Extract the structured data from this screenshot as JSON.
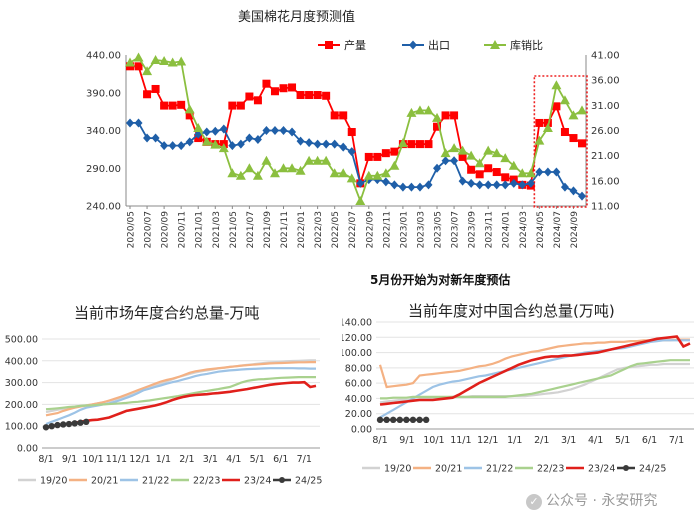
{
  "watermark": "公众号 · 永安研究",
  "watermark_glyph": "✓",
  "chart_data": [
    {
      "type": "line",
      "title": "美国棉花月度预测值",
      "note": "5月份开始为对新年度预估",
      "x": [
        "2020/05",
        "2020/06",
        "2020/07",
        "2020/08",
        "2020/09",
        "2020/10",
        "2020/11",
        "2020/12",
        "2021/01",
        "2021/02",
        "2021/03",
        "2021/04",
        "2021/05",
        "2021/06",
        "2021/07",
        "2021/08",
        "2021/09",
        "2021/10",
        "2021/11",
        "2021/12",
        "2022/01",
        "2022/02",
        "2022/03",
        "2022/04",
        "2022/05",
        "2022/06",
        "2022/07",
        "2022/08",
        "2022/09",
        "2022/10",
        "2022/11",
        "2022/12",
        "2023/01",
        "2023/02",
        "2023/03",
        "2023/04",
        "2023/05",
        "2023/06",
        "2023/07",
        "2023/08",
        "2023/09",
        "2023/10",
        "2023/11",
        "2023/12",
        "2024/01",
        "2024/02",
        "2024/03",
        "2024/04",
        "2024/05",
        "2024/06",
        "2024/07",
        "2024/08",
        "2024/09",
        "2024/10"
      ],
      "x_tick_labels": [
        "2020/05",
        "2020/07",
        "2020/09",
        "2020/11",
        "2021/01",
        "2021/03",
        "2021/05",
        "2021/07",
        "2021/09",
        "2021/11",
        "2022/01",
        "2022/03",
        "2022/05",
        "2022/07",
        "2022/09",
        "2022/11",
        "2023/01",
        "2023/03",
        "2023/05",
        "2023/07",
        "2023/09",
        "2023/11",
        "2024/01",
        "2024/03",
        "2024/05",
        "2024/07",
        "2024/09"
      ],
      "ylim_left": [
        240,
        440
      ],
      "yticks_left": [
        "240.00",
        "290.00",
        "340.00",
        "390.00",
        "440.00"
      ],
      "ylim_right": [
        11,
        41
      ],
      "yticks_right": [
        "11.00",
        "16.00",
        "21.00",
        "26.00",
        "31.00",
        "36.00",
        "41.00"
      ],
      "highlight_range": [
        "2024/05",
        "2024/10"
      ],
      "series": [
        {
          "name": "产量",
          "axis": "left",
          "color": "#ff0000",
          "marker": "square",
          "values": [
            425,
            425,
            388,
            395,
            373,
            373,
            374,
            360,
            330,
            325,
            322,
            322,
            373,
            373,
            385,
            380,
            402,
            392,
            396,
            397,
            387,
            387,
            387,
            386,
            360,
            360,
            338,
            270,
            305,
            305,
            310,
            312,
            322,
            322,
            322,
            322,
            345,
            360,
            360,
            305,
            288,
            282,
            290,
            285,
            278,
            275,
            268,
            267,
            350,
            350,
            372,
            338,
            330,
            323
          ]
        },
        {
          "name": "出口",
          "axis": "left",
          "color": "#1f5fa8",
          "marker": "diamond",
          "values": [
            350,
            350,
            330,
            330,
            320,
            320,
            320,
            325,
            335,
            338,
            339,
            342,
            320,
            322,
            330,
            328,
            340,
            340,
            340,
            338,
            326,
            324,
            322,
            322,
            322,
            318,
            312,
            270,
            275,
            275,
            272,
            268,
            265,
            265,
            265,
            268,
            290,
            300,
            300,
            273,
            270,
            268,
            268,
            268,
            268,
            270,
            268,
            270,
            285,
            285,
            285,
            265,
            260,
            253
          ]
        },
        {
          "name": "库销比",
          "axis": "right",
          "color": "#8bbf3f",
          "marker": "triangle",
          "values": [
            39.5,
            40.5,
            37.8,
            40,
            39.8,
            39.5,
            39.7,
            30.2,
            26.5,
            23.8,
            23.2,
            22.5,
            17.5,
            17,
            18.5,
            17,
            20,
            17.5,
            18.5,
            18.5,
            18,
            20,
            20,
            20,
            17.5,
            17.5,
            16.5,
            12,
            17,
            17,
            17.5,
            19,
            23.5,
            29.5,
            30,
            30,
            28.5,
            21.5,
            22.5,
            22,
            21,
            19.5,
            22,
            21.5,
            20.5,
            19,
            17.5,
            17.5,
            24,
            26.5,
            35,
            32,
            29,
            30
          ]
        }
      ]
    },
    {
      "type": "line",
      "title": "当前市场年度合约总量-万吨",
      "ylim": [
        0,
        500
      ],
      "yticks": [
        "0.00",
        "100.00",
        "200.00",
        "300.00",
        "400.00",
        "500.00"
      ],
      "x_tick_labels": [
        "8/1",
        "9/1",
        "10/1",
        "11/1",
        "12/1",
        "1/1",
        "2/1",
        "3/1",
        "4/1",
        "5/1",
        "6/1",
        "7/1"
      ],
      "n_points": 48,
      "series": [
        {
          "name": "19/20",
          "color": "#d2d2d2",
          "values": [
            165,
            170,
            175,
            180,
            185,
            190,
            192,
            196,
            200,
            205,
            210,
            215,
            222,
            230,
            238,
            245,
            255,
            265,
            275,
            285,
            295,
            305,
            315,
            325,
            332,
            340,
            347,
            352,
            356,
            360,
            365,
            368,
            372,
            375,
            378,
            381,
            384,
            387,
            390,
            392,
            394,
            396,
            398,
            399,
            400,
            401,
            402,
            402
          ]
        },
        {
          "name": "20/21",
          "color": "#f4b183",
          "values": [
            150,
            155,
            160,
            170,
            178,
            185,
            190,
            195,
            200,
            205,
            210,
            218,
            226,
            235,
            245,
            255,
            265,
            275,
            285,
            295,
            305,
            312,
            318,
            325,
            335,
            345,
            352,
            356,
            360,
            363,
            366,
            369,
            372,
            375,
            378,
            380,
            382,
            384,
            386,
            388,
            389,
            390,
            391,
            392,
            393,
            393,
            394,
            394
          ]
        },
        {
          "name": "21/22",
          "color": "#9dc3e6",
          "values": [
            110,
            120,
            130,
            140,
            150,
            162,
            175,
            185,
            190,
            195,
            200,
            205,
            212,
            220,
            230,
            240,
            252,
            265,
            272,
            280,
            287,
            295,
            302,
            308,
            315,
            322,
            330,
            336,
            340,
            345,
            350,
            353,
            356,
            358,
            360,
            362,
            363,
            364,
            365,
            366,
            366,
            366,
            366,
            366,
            365,
            365,
            364,
            364
          ]
        },
        {
          "name": "22/23",
          "color": "#a9d18e",
          "values": [
            178,
            180,
            182,
            185,
            188,
            190,
            193,
            195,
            196,
            198,
            200,
            202,
            203,
            205,
            207,
            210,
            212,
            215,
            218,
            222,
            226,
            230,
            234,
            238,
            243,
            248,
            253,
            258,
            262,
            266,
            270,
            275,
            280,
            290,
            300,
            308,
            312,
            315,
            316,
            318,
            320,
            322,
            323,
            324,
            325,
            325,
            325,
            325
          ]
        },
        {
          "name": "23/24",
          "color": "#e0201b",
          "values": [
            92,
            100,
            105,
            108,
            110,
            115,
            120,
            125,
            128,
            130,
            135,
            140,
            150,
            160,
            170,
            175,
            180,
            185,
            190,
            195,
            202,
            210,
            220,
            228,
            235,
            240,
            243,
            245,
            247,
            250,
            252,
            255,
            258,
            262,
            266,
            270,
            275,
            280,
            285,
            290,
            293,
            296,
            298,
            300,
            300,
            302,
            280,
            285
          ]
        },
        {
          "name": "24/25",
          "color": "#3a3a3a",
          "values": [
            95,
            100,
            105,
            108,
            110,
            113,
            116,
            120
          ]
        }
      ]
    },
    {
      "type": "line",
      "title": "当前年度对中国合约总量(万吨)",
      "ylim": [
        0,
        140
      ],
      "yticks": [
        "0.00",
        "20.00",
        "40.00",
        "60.00",
        "80.00",
        "100.00",
        "120.00",
        "140.00"
      ],
      "x_tick_labels": [
        "8/1",
        "9/1",
        "10/1",
        "11/1",
        "12/1",
        "1/1",
        "2/1",
        "3/1",
        "4/1",
        "5/1",
        "6/1",
        "7/1"
      ],
      "n_points": 48,
      "series": [
        {
          "name": "19/20",
          "color": "#d2d2d2",
          "values": [
            35,
            36,
            37,
            38,
            38,
            38,
            39,
            40,
            40,
            41,
            41,
            42,
            42,
            42,
            43,
            43,
            43,
            43,
            43,
            43,
            43,
            43,
            43,
            44,
            45,
            46,
            47,
            48,
            50,
            52,
            55,
            58,
            62,
            66,
            70,
            74,
            78,
            80,
            81,
            82,
            83,
            84,
            84,
            85,
            85,
            85,
            85,
            85
          ]
        },
        {
          "name": "20/21",
          "color": "#f4b183",
          "values": [
            84,
            55,
            56,
            57,
            58,
            60,
            70,
            71,
            72,
            73,
            74,
            75,
            76,
            78,
            80,
            82,
            83,
            85,
            88,
            92,
            95,
            97,
            99,
            101,
            102,
            104,
            106,
            108,
            109,
            110,
            111,
            112,
            112,
            113,
            113,
            114,
            114,
            114,
            115,
            115,
            116,
            116,
            116,
            116,
            116,
            117,
            117,
            117
          ]
        },
        {
          "name": "21/22",
          "color": "#9dc3e6",
          "values": [
            15,
            20,
            25,
            30,
            35,
            40,
            45,
            50,
            55,
            58,
            60,
            62,
            63,
            65,
            67,
            69,
            70,
            72,
            74,
            76,
            78,
            80,
            82,
            84,
            86,
            88,
            90,
            92,
            94,
            96,
            98,
            100,
            101,
            102,
            103,
            104,
            105,
            106,
            108,
            110,
            112,
            114,
            115,
            116,
            116,
            116,
            116,
            116
          ]
        },
        {
          "name": "22/23",
          "color": "#a9d18e",
          "values": [
            40,
            40,
            41,
            41,
            41,
            42,
            42,
            42,
            42,
            42,
            42,
            42,
            42,
            42,
            42,
            42,
            42,
            42,
            42,
            42,
            43,
            44,
            45,
            46,
            48,
            50,
            52,
            54,
            56,
            58,
            60,
            62,
            64,
            66,
            68,
            70,
            74,
            78,
            82,
            85,
            86,
            87,
            88,
            89,
            90,
            90,
            90,
            90
          ]
        },
        {
          "name": "23/24",
          "color": "#e0201b",
          "values": [
            32,
            33,
            34,
            35,
            36,
            37,
            38,
            38,
            38,
            39,
            40,
            41,
            45,
            50,
            55,
            60,
            64,
            68,
            72,
            76,
            80,
            84,
            87,
            90,
            92,
            94,
            95,
            95,
            96,
            96,
            97,
            98,
            99,
            100,
            102,
            104,
            106,
            108,
            110,
            112,
            114,
            116,
            118,
            119,
            120,
            121,
            108,
            112
          ]
        },
        {
          "name": "24/25",
          "color": "#3a3a3a",
          "values": [
            12,
            12,
            12,
            12,
            12,
            12,
            12,
            12
          ]
        }
      ]
    }
  ]
}
